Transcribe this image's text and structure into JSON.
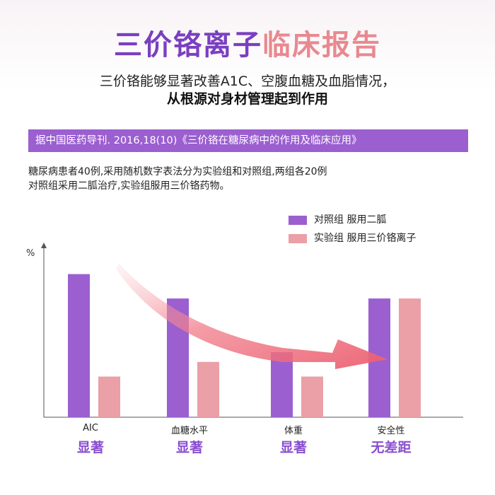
{
  "header": {
    "title_part1": "三价铬离子",
    "title_part2": "临床报告",
    "subtitle_line1": "三价铬能够显著改善A1C、空腹血糖及血脂情况，",
    "subtitle_line2": "从根源对身材管理起到作用"
  },
  "source": {
    "text": "据中国医药导刊. 2016,18(10)《三价铬在糖尿病中的作用及临床应用》"
  },
  "description": {
    "line1": "糖尿病患者40例,采用随机数字表法分为实验组和对照组,两组各20例",
    "line2": "对照组采用二胍治疗,实验组服用三价铬药物。"
  },
  "colors": {
    "purple_accent": "#8a4ed0",
    "pink_accent": "#e8898f",
    "banner": "#9b5fd0"
  },
  "chart_data": {
    "type": "bar",
    "ylabel": "%",
    "categories": [
      "AIC",
      "血糖水平",
      "体重",
      "安全性"
    ],
    "category_notes": [
      "显著",
      "显著",
      "显著",
      "无差距"
    ],
    "ylim": [
      0,
      100
    ],
    "series": [
      {
        "name": "对照组 服用二胍",
        "color": "#9b5fd0",
        "values": [
          88,
          73,
          40,
          73
        ]
      },
      {
        "name": "实验组 服用三价铬离子",
        "color": "#eaa0a6",
        "values": [
          25,
          34,
          25,
          73
        ]
      }
    ],
    "annotation": {
      "type": "arrow",
      "from_category": "AIC",
      "to_category": "安全性"
    },
    "grid": false,
    "legend_position": "top-right"
  }
}
